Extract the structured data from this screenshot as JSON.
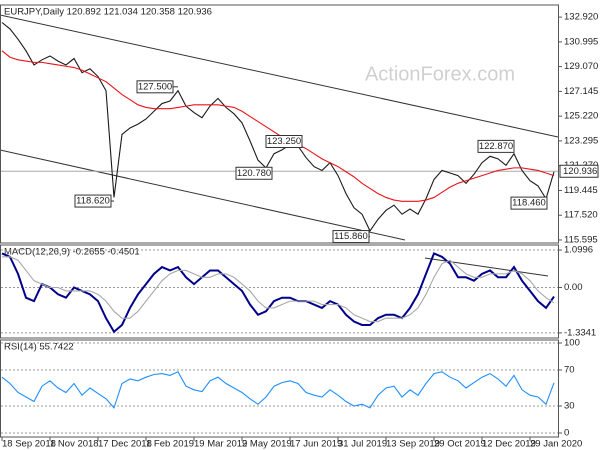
{
  "chart_data": [
    {
      "type": "line",
      "title": "EURJPY,Daily  120.892 121.034 120.358 120.936",
      "watermark": "ActionForex.com",
      "ylim": [
        115.36,
        133.86
      ],
      "yticks": [
        {
          "value": 132.92,
          "label": "132.920"
        },
        130.995,
        {
          "value": 129.07,
          "label": "129.070"
        },
        127.145,
        {
          "value": 125.22,
          "label": "125.220"
        },
        123.295,
        {
          "value": 121.37,
          "label": "121.370"
        },
        119.445,
        {
          "value": 117.52,
          "label": "117.520"
        },
        115.595
      ],
      "grid": false,
      "last_value": 120.936,
      "series": [
        {
          "color": "#1a1a1a",
          "values": [
            132.5,
            132.0,
            131.2,
            130.3,
            129.2,
            129.6,
            129.9,
            129.5,
            129.2,
            129.7,
            128.6,
            128.9,
            128.3,
            127.2,
            118.9,
            123.8,
            124.3,
            124.6,
            125.0,
            125.6,
            126.2,
            126.4,
            127.2,
            126.0,
            125.5,
            125.1,
            126.0,
            126.6,
            125.9,
            125.4,
            124.7,
            123.3,
            121.8,
            121.2,
            122.3,
            122.6,
            123.0,
            122.9,
            122.0,
            121.3,
            121.0,
            121.6,
            120.6,
            119.2,
            118.1,
            117.6,
            116.3,
            117.2,
            117.9,
            118.3,
            117.6,
            118.0,
            117.6,
            118.8,
            120.3,
            121.0,
            120.8,
            120.6,
            120.0,
            120.7,
            121.6,
            122.1,
            121.9,
            121.4,
            122.3,
            121.0,
            120.2,
            119.8,
            118.8,
            120.9
          ]
        },
        {
          "color": "#e8141b",
          "values": [
            130.3,
            129.8,
            129.6,
            129.5,
            129.4,
            129.4,
            129.3,
            129.2,
            129.1,
            129.0,
            128.8,
            128.5,
            128.2,
            127.9,
            127.4,
            126.9,
            126.5,
            126.1,
            125.9,
            125.8,
            125.8,
            125.8,
            125.9,
            126.0,
            126.1,
            126.1,
            126.1,
            126.1,
            126.0,
            125.9,
            125.6,
            125.2,
            124.8,
            124.4,
            124.0,
            123.6,
            123.3,
            123.0,
            122.7,
            122.3,
            121.9,
            121.6,
            121.3,
            120.9,
            120.5,
            120.0,
            119.6,
            119.2,
            118.9,
            118.7,
            118.6,
            118.6,
            118.6,
            118.7,
            118.9,
            119.3,
            119.7,
            120.0,
            120.2,
            120.4,
            120.6,
            120.8,
            121.0,
            121.1,
            121.2,
            121.2,
            121.1,
            121.0,
            120.8,
            120.6
          ]
        }
      ],
      "annotations": [
        {
          "value": 127.5,
          "label": "127.500"
        },
        {
          "value": 123.25,
          "label": "123.250"
        },
        {
          "value": 120.78,
          "label": "120.780"
        },
        {
          "value": 118.62,
          "label": "118.620"
        },
        {
          "value": 115.86,
          "label": "115.860"
        },
        {
          "value": 122.87,
          "label": "122.870"
        },
        {
          "value": 118.46,
          "label": "118.460"
        }
      ]
    },
    {
      "type": "line",
      "title": "MACD(12,26,9) -0.2655 -0.4501",
      "ylim": [
        -1.483,
        1.248
      ],
      "yticks": [
        1.0996,
        {
          "value": 0,
          "label": "0.00"
        },
        -1.3341
      ],
      "grid": true,
      "series": [
        {
          "color": "#00008b",
          "values": [
            1.0,
            0.9,
            0.4,
            -0.3,
            -0.4,
            0.1,
            0.0,
            -0.2,
            -0.3,
            0.0,
            -0.1,
            -0.2,
            -0.4,
            -0.9,
            -1.3,
            -1.1,
            -0.6,
            -0.2,
            0.1,
            0.4,
            0.6,
            0.5,
            0.6,
            0.3,
            0.1,
            0.3,
            0.5,
            0.5,
            0.3,
            0.1,
            -0.1,
            -0.5,
            -0.8,
            -0.7,
            -0.4,
            -0.3,
            -0.3,
            -0.4,
            -0.4,
            -0.5,
            -0.6,
            -0.4,
            -0.5,
            -0.8,
            -1.0,
            -1.1,
            -1.1,
            -0.9,
            -0.8,
            -0.8,
            -0.9,
            -0.6,
            -0.2,
            0.4,
            1.0,
            0.9,
            0.7,
            0.3,
            0.3,
            0.2,
            0.4,
            0.5,
            0.3,
            0.3,
            0.6,
            0.2,
            -0.1,
            -0.4,
            -0.6,
            -0.2655
          ]
        },
        {
          "color": "#a8a8a8",
          "values": [
            0.9,
            0.9,
            0.8,
            0.5,
            0.2,
            0.1,
            0.0,
            0.0,
            -0.1,
            -0.1,
            -0.1,
            -0.1,
            -0.2,
            -0.4,
            -0.7,
            -0.9,
            -0.9,
            -0.7,
            -0.4,
            -0.1,
            0.2,
            0.4,
            0.5,
            0.5,
            0.4,
            0.3,
            0.3,
            0.4,
            0.4,
            0.3,
            0.1,
            -0.1,
            -0.4,
            -0.6,
            -0.6,
            -0.5,
            -0.4,
            -0.4,
            -0.4,
            -0.4,
            -0.5,
            -0.5,
            -0.5,
            -0.6,
            -0.8,
            -0.9,
            -1.0,
            -1.0,
            -0.9,
            -0.9,
            -0.9,
            -0.8,
            -0.6,
            -0.2,
            0.3,
            0.7,
            0.8,
            0.6,
            0.4,
            0.3,
            0.3,
            0.4,
            0.4,
            0.4,
            0.5,
            0.4,
            0.2,
            -0.1,
            -0.3,
            -0.4501
          ]
        }
      ]
    },
    {
      "type": "line",
      "title": "RSI(14) 55.7422",
      "ylim": [
        0,
        100
      ],
      "yticks": [
        100,
        70,
        30,
        0
      ],
      "grid": true,
      "categories": [
        "18 Sep 2018",
        null,
        null,
        null,
        null,
        null,
        "1 Nov 2018",
        null,
        null,
        null,
        null,
        null,
        "17 Dec 2018",
        null,
        null,
        null,
        null,
        null,
        "1 Feb 2019",
        null,
        null,
        null,
        null,
        null,
        "19 Mar 2019",
        null,
        null,
        null,
        null,
        null,
        "2 May 2019",
        null,
        null,
        null,
        null,
        null,
        "17 Jun 2019",
        null,
        null,
        null,
        null,
        null,
        "31 Jul 2019",
        null,
        null,
        null,
        null,
        null,
        "13 Sep 2019",
        null,
        null,
        null,
        null,
        null,
        "29 Oct 2019",
        null,
        null,
        null,
        null,
        null,
        "12 Dec 2019",
        null,
        null,
        null,
        null,
        null,
        "29 Jan 2020",
        null,
        null,
        null
      ],
      "series": [
        {
          "color": "#1e90ff",
          "values": [
            62,
            55,
            45,
            40,
            35,
            52,
            58,
            50,
            45,
            55,
            42,
            50,
            44,
            38,
            28,
            55,
            60,
            58,
            62,
            65,
            66,
            64,
            68,
            52,
            48,
            46,
            58,
            62,
            55,
            50,
            45,
            38,
            32,
            40,
            52,
            56,
            58,
            55,
            45,
            42,
            40,
            48,
            42,
            35,
            30,
            32,
            28,
            42,
            50,
            52,
            40,
            48,
            42,
            55,
            66,
            68,
            62,
            58,
            50,
            56,
            62,
            66,
            60,
            52,
            64,
            48,
            42,
            40,
            32,
            55.7422
          ]
        }
      ]
    }
  ]
}
